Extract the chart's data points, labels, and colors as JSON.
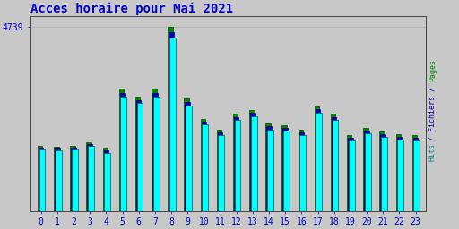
{
  "title": "Acces horaire pour Mai 2021",
  "hours": [
    0,
    1,
    2,
    3,
    4,
    5,
    6,
    7,
    8,
    9,
    10,
    11,
    12,
    13,
    14,
    15,
    16,
    17,
    18,
    19,
    20,
    21,
    22,
    23
  ],
  "pages": [
    1680,
    1650,
    1680,
    1780,
    1600,
    3150,
    2950,
    3150,
    4739,
    2900,
    2380,
    2100,
    2500,
    2600,
    2250,
    2200,
    2100,
    2700,
    2500,
    1950,
    2150,
    2050,
    1980,
    1950
  ],
  "fichiers": [
    1630,
    1600,
    1630,
    1730,
    1550,
    3050,
    2860,
    3050,
    4600,
    2800,
    2300,
    2030,
    2420,
    2520,
    2180,
    2130,
    2030,
    2620,
    2420,
    1880,
    2080,
    1980,
    1910,
    1880
  ],
  "hits": [
    1580,
    1550,
    1580,
    1680,
    1500,
    2950,
    2780,
    2950,
    4460,
    2720,
    2220,
    1960,
    2340,
    2440,
    2100,
    2060,
    1960,
    2540,
    2340,
    1820,
    2010,
    1910,
    1840,
    1820
  ],
  "color_pages": "#008800",
  "color_fichiers": "#0000cc",
  "color_hits": "#00ffff",
  "edge_color": "#004444",
  "bg_color": "#c8c8c8",
  "title_color": "#0000cc",
  "tick_color": "#0000cc",
  "ymax": 4739,
  "grid_color": "#b0b0b0",
  "label_pages_color": "#008800",
  "label_fichiers_color": "#0000aa",
  "label_hits_color": "#008888"
}
